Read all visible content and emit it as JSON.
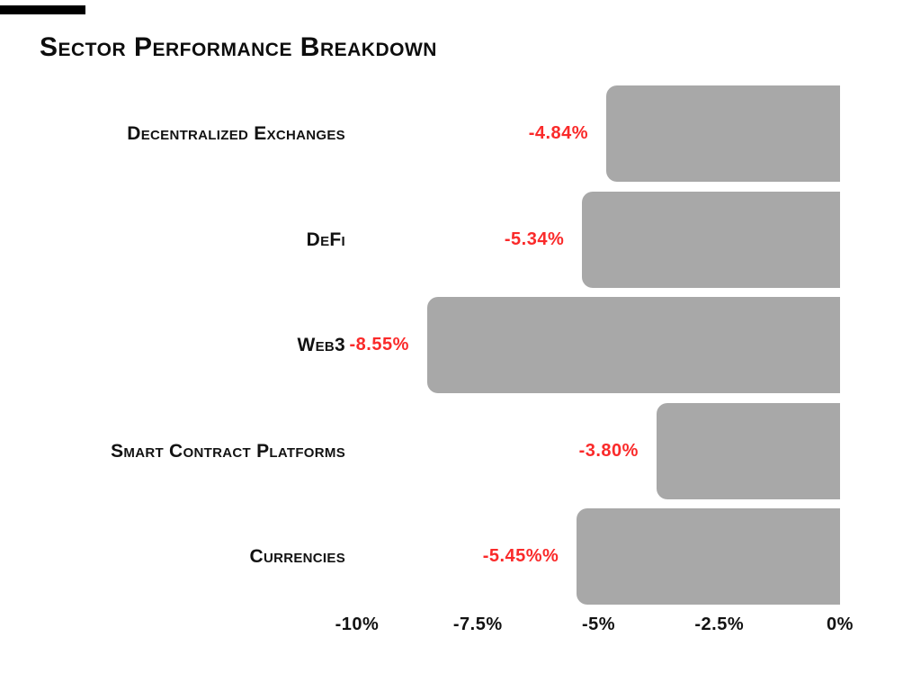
{
  "title": "Sector Performance Breakdown",
  "colors": {
    "background": "#ffffff",
    "bar": "#a8a8a8",
    "category_text": "#121212",
    "value_text": "#fa2a2a",
    "tick_text": "#121212",
    "top_decoration": "#000000"
  },
  "chart_data": {
    "type": "bar",
    "orientation": "horizontal",
    "title": "Sector Performance Breakdown",
    "categories": [
      "Decentralized Exchanges",
      "DeFi",
      "Web3",
      "Smart Contract Platforms",
      "Currencies"
    ],
    "values": [
      -4.84,
      -5.34,
      -8.55,
      -3.8,
      -5.45
    ],
    "value_labels": [
      "-4.84%",
      "-5.34%",
      "-8.55%",
      "-3.80%",
      "-5.45%%"
    ],
    "x_tick_labels": [
      "-10%",
      "-7.5%",
      "-5%",
      "-2.5%",
      "0%"
    ],
    "x_tick_values": [
      -10,
      -7.5,
      -5,
      -2.5,
      0
    ],
    "xlim": [
      -10,
      0
    ],
    "xlabel": "",
    "ylabel": "",
    "grid": false,
    "legend": false,
    "bar_color": "#a8a8a8",
    "value_label_color": "#fa2a2a"
  }
}
